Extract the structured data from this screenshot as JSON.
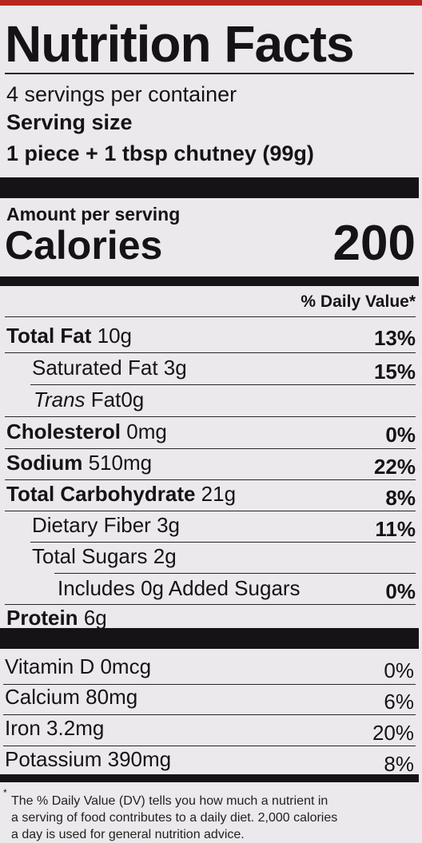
{
  "label": {
    "title": "Nutrition Facts",
    "servings_per_container": "4 servings per container",
    "serving_size_label": "Serving size",
    "serving_size_value": "1 piece + 1 tbsp chutney (99g)",
    "amount_per_serving": "Amount per serving",
    "calories_label": "Calories",
    "calories_value": "200",
    "dv_header": "% Daily Value*",
    "nutrients": [
      {
        "name": "Total Fat",
        "amount": "10g",
        "dv": "13%"
      },
      {
        "name": "Saturated Fat",
        "amount": "3g",
        "dv": "15%"
      },
      {
        "name_italic": "Trans",
        "name": "Fat",
        "amount": "0g",
        "dv": ""
      },
      {
        "name": "Cholesterol",
        "amount": "0mg",
        "dv": "0%"
      },
      {
        "name": "Sodium",
        "amount": "510mg",
        "dv": "22%"
      },
      {
        "name": "Total Carbohydrate",
        "amount": "21g",
        "dv": "8%"
      },
      {
        "name": "Dietary Fiber",
        "amount": "3g",
        "dv": "11%"
      },
      {
        "name": "Total Sugars",
        "amount": "2g",
        "dv": ""
      },
      {
        "name": "Includes 0g Added Sugars",
        "amount": "",
        "dv": "0%"
      },
      {
        "name": "Protein",
        "amount": "6g",
        "dv": ""
      }
    ],
    "vitamins": [
      {
        "name": "Vitamin D",
        "amount": "0mcg",
        "dv": "0%"
      },
      {
        "name": "Calcium",
        "amount": "80mg",
        "dv": "6%"
      },
      {
        "name": "Iron",
        "amount": "3.2mg",
        "dv": "20%"
      },
      {
        "name": "Potassium",
        "amount": "390mg",
        "dv": "8%"
      }
    ],
    "footnote_mark": "*",
    "footnote_lines": [
      "The % Daily Value (DV) tells you how much a nutrient in",
      "a serving of food contributes to a daily diet. 2,000 calories",
      "a day is used for general nutrition advice."
    ]
  }
}
